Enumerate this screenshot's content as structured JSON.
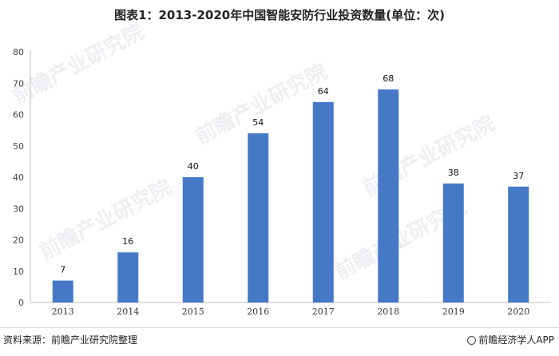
{
  "chart_data": {
    "type": "bar",
    "title": "图表1：2013-2020年中国智能安防行业投资数量(单位：次)",
    "categories": [
      "2013",
      "2014",
      "2015",
      "2016",
      "2017",
      "2018",
      "2019",
      "2020"
    ],
    "values": [
      7,
      16,
      40,
      54,
      64,
      68,
      38,
      37
    ],
    "ylim": [
      0,
      80
    ],
    "yticks": [
      0,
      10,
      20,
      30,
      40,
      50,
      60,
      70,
      80
    ],
    "grid": false,
    "legend": "none",
    "bar_color": "#4579c6"
  },
  "watermark": "前瞻产业研究院",
  "footer": {
    "source": "资料来源：前瞻产业研究院整理",
    "brand": "前瞻经济学人APP"
  }
}
